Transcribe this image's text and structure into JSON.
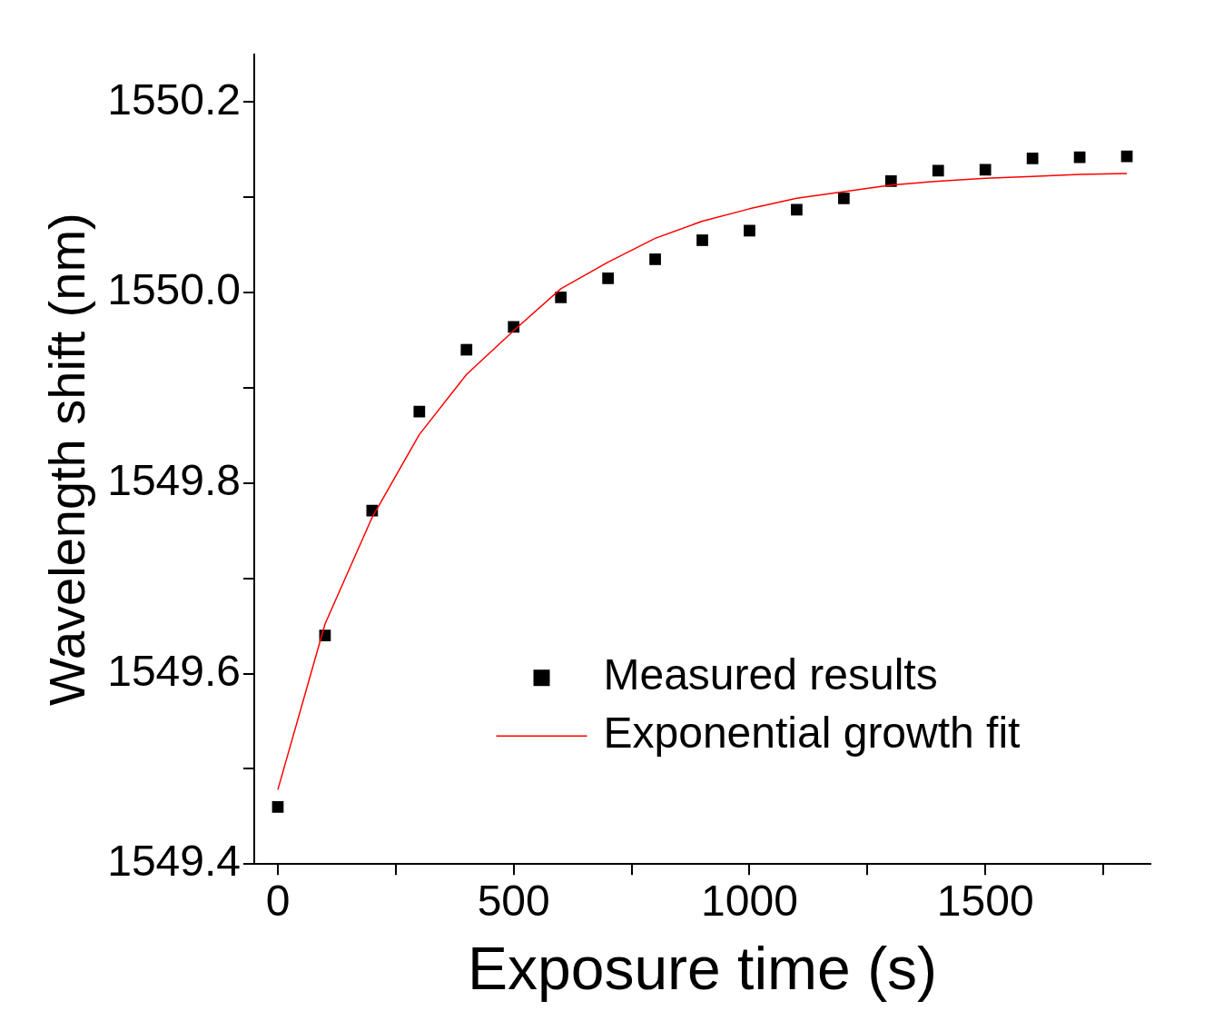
{
  "chart_data": {
    "type": "scatter",
    "xlabel": "Exposure time (s)",
    "ylabel": "Wavelength shift (nm)",
    "xlim": [
      -50,
      1850
    ],
    "xticks": [
      0,
      {
        "value": 250,
        "label": null
      },
      500,
      {
        "value": 750,
        "label": null
      },
      1000,
      {
        "value": 1250,
        "label": null
      },
      1500,
      {
        "value": 1750,
        "label": null
      }
    ],
    "ylim": [
      1549.4,
      1550.25
    ],
    "yticks": [
      {
        "value": 1549.4,
        "label": "1549.4"
      },
      {
        "value": 1549.5,
        "label": null
      },
      {
        "value": 1549.6,
        "label": "1549.6"
      },
      {
        "value": 1549.7,
        "label": null
      },
      {
        "value": 1549.8,
        "label": "1549.8"
      },
      {
        "value": 1549.9,
        "label": null
      },
      {
        "value": 1550.0,
        "label": "1550.0"
      },
      {
        "value": 1550.1,
        "label": null
      },
      {
        "value": 1550.2,
        "label": "1550.2"
      }
    ],
    "grid": false,
    "legend": "bottom right",
    "series": [
      {
        "name": "Measured results",
        "marker": "square",
        "color": "#000000",
        "x": [
          0,
          100,
          200,
          300,
          400,
          500,
          600,
          700,
          800,
          900,
          1000,
          1100,
          1200,
          1300,
          1400,
          1500,
          1600,
          1700,
          1800
        ],
        "values": [
          1549.46,
          1549.64,
          1549.771,
          1549.875,
          1549.94,
          1549.964,
          1549.995,
          1550.015,
          1550.035,
          1550.055,
          1550.065,
          1550.087,
          1550.099,
          1550.117,
          1550.128,
          1550.129,
          1550.141,
          1550.142,
          1550.143
        ]
      },
      {
        "name": "Exponential growth fit",
        "type": "line",
        "marker": "none",
        "line_style": "solid",
        "color": "#ff0000",
        "x": [
          0,
          100,
          200,
          300,
          400,
          500,
          600,
          700,
          800,
          900,
          1000,
          1100,
          1200,
          1300,
          1400,
          1500,
          1600,
          1700,
          1800
        ],
        "values": [
          1549.478,
          1549.652,
          1549.764,
          1549.851,
          1549.914,
          1549.96,
          1550.004,
          1550.032,
          1550.057,
          1550.075,
          1550.088,
          1550.099,
          1550.106,
          1550.113,
          1550.117,
          1550.12,
          1550.122,
          1550.124,
          1550.125
        ]
      }
    ]
  }
}
